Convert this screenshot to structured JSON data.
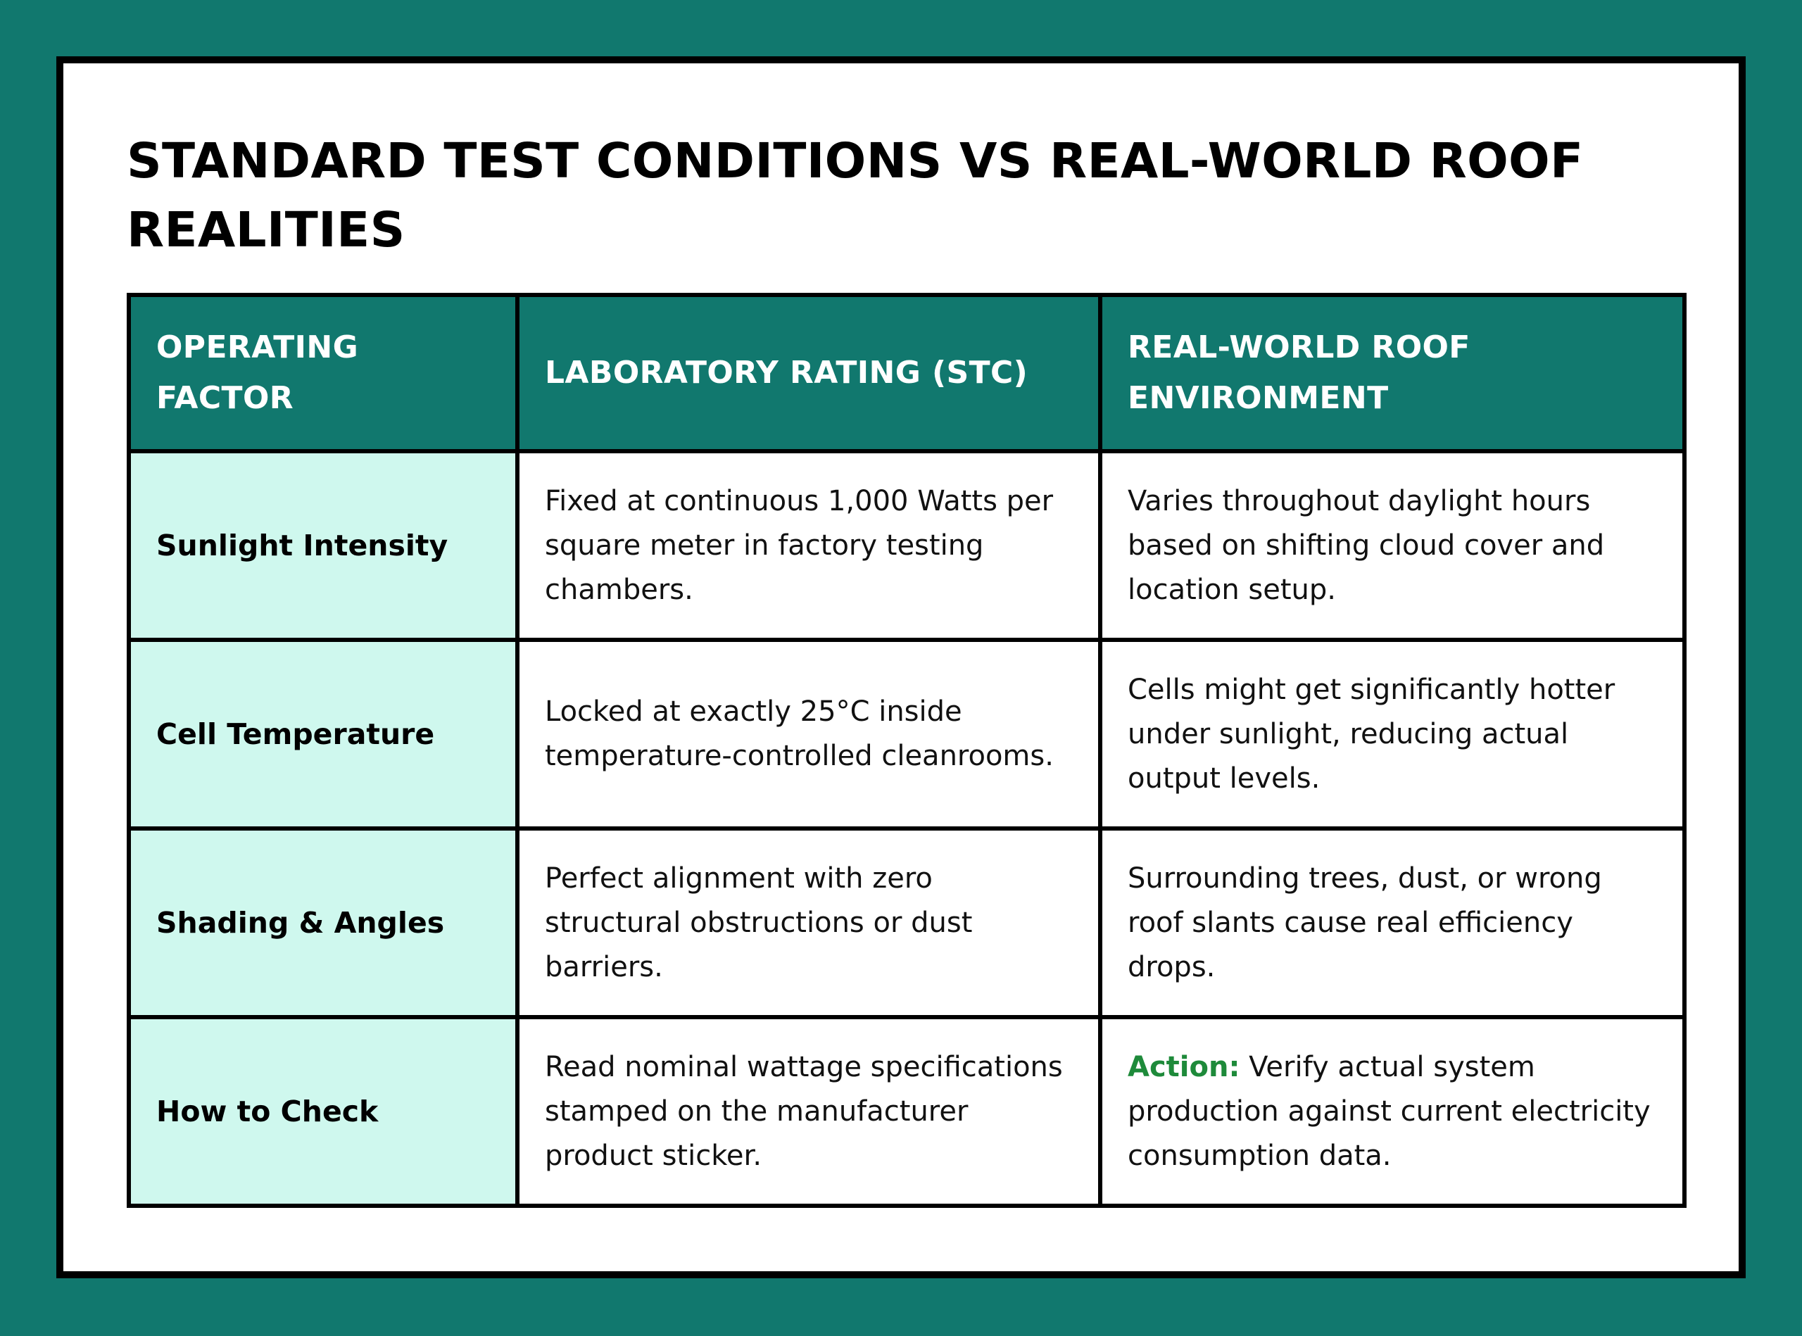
{
  "title": "STANDARD TEST CONDITIONS VS REAL-WORLD ROOF REALITIES",
  "table": {
    "headers": [
      "OPERATING FACTOR",
      "LABORATORY RATING (STC)",
      "REAL-WORLD ROOF ENVIRONMENT"
    ],
    "rows": [
      {
        "factor": "Sunlight Intensity",
        "lab": "Fixed at continuous 1,000 Watts per square meter in factory testing chambers.",
        "real": "Varies throughout daylight hours based on shifting cloud cover and location setup."
      },
      {
        "factor": "Cell Temperature",
        "lab": "Locked at exactly 25°C inside temperature-controlled cleanrooms.",
        "real": "Cells might get significantly hotter under sunlight, reducing actual output levels."
      },
      {
        "factor": "Shading & Angles",
        "lab": "Perfect alignment with zero structural obstructions or dust barriers.",
        "real": "Surrounding trees, dust, or wrong roof slants cause real efficiency drops."
      },
      {
        "factor": "How to Check",
        "lab": "Read nominal wattage specifications stamped on the manufacturer product sticker.",
        "real_label": "Action:",
        "real": "Verify actual system production against current electricity consumption data."
      }
    ]
  },
  "colors": {
    "background": "#11786e",
    "header": "#11786e",
    "factor_cell": "#cff8ee",
    "action": "#1e8a3a"
  }
}
